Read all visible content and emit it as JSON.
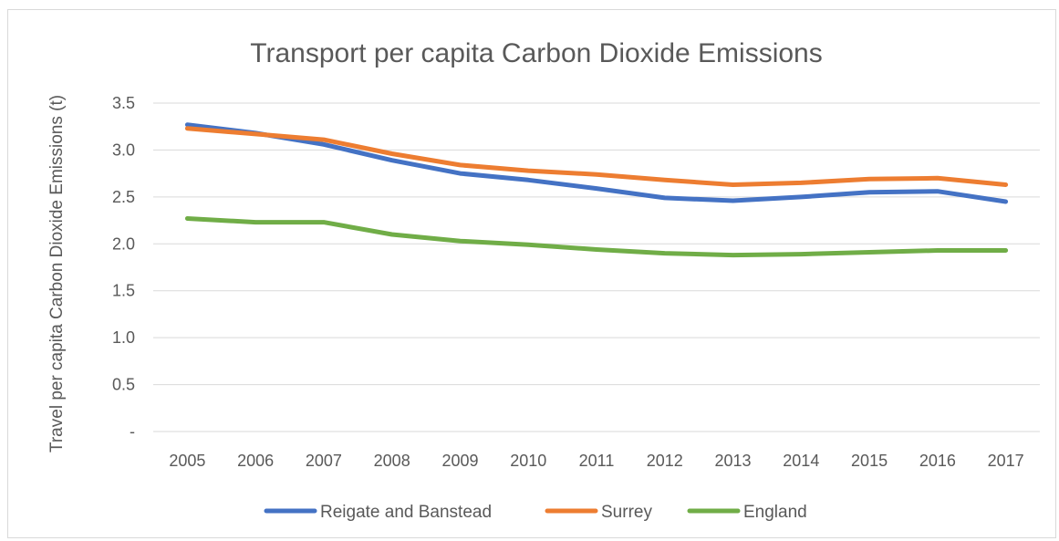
{
  "chart_data": {
    "type": "line",
    "title": "Transport per capita Carbon Dioxide Emissions",
    "ylabel": "Travel per capita Carbon Dioxide Emissions (t)",
    "xlabel": "",
    "x": [
      "2005",
      "2006",
      "2007",
      "2008",
      "2009",
      "2010",
      "2011",
      "2012",
      "2013",
      "2014",
      "2015",
      "2016",
      "2017"
    ],
    "ylim": [
      0,
      3.5
    ],
    "y_ticks": [
      {
        "value": 0,
        "label": "-"
      },
      {
        "value": 0.5,
        "label": "0.5"
      },
      {
        "value": 1.0,
        "label": "1.0"
      },
      {
        "value": 1.5,
        "label": "1.5"
      },
      {
        "value": 2.0,
        "label": "2.0"
      },
      {
        "value": 2.5,
        "label": "2.5"
      },
      {
        "value": 3.0,
        "label": "3.0"
      },
      {
        "value": 3.5,
        "label": "3.5"
      }
    ],
    "grid": true,
    "legend_position": "bottom",
    "series": [
      {
        "name": "Reigate and Banstead",
        "color": "#4472c4",
        "values": [
          3.27,
          3.18,
          3.06,
          2.89,
          2.75,
          2.68,
          2.59,
          2.49,
          2.46,
          2.5,
          2.55,
          2.56,
          2.45
        ]
      },
      {
        "name": "Surrey",
        "color": "#ed7d31",
        "values": [
          3.23,
          3.17,
          3.11,
          2.96,
          2.84,
          2.78,
          2.74,
          2.68,
          2.63,
          2.65,
          2.69,
          2.7,
          2.63
        ]
      },
      {
        "name": "England",
        "color": "#70ad47",
        "values": [
          2.27,
          2.23,
          2.23,
          2.1,
          2.03,
          1.99,
          1.94,
          1.9,
          1.88,
          1.89,
          1.91,
          1.93,
          1.93
        ]
      }
    ]
  }
}
